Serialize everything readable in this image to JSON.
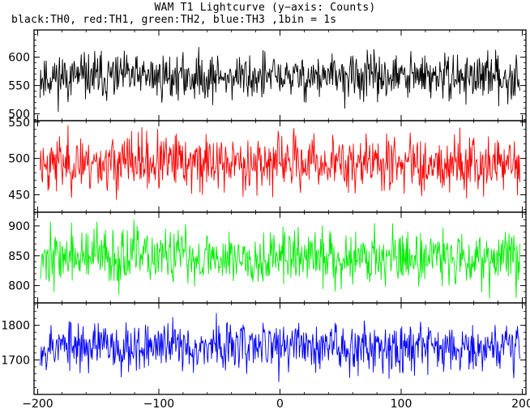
{
  "title": "WAM T1 Lightcurve (y−axis: Counts)",
  "subtitle": "black:TH0, red:TH1, green:TH2, blue:TH3 ,1bin = 1s",
  "chart_data": {
    "type": "line",
    "shared_x": {
      "range": [
        -203,
        203
      ],
      "ticks": [
        -200,
        -100,
        0,
        100,
        200
      ],
      "tick_labels": [
        "−200",
        "−100",
        "0",
        "100",
        "200"
      ]
    },
    "panels": [
      {
        "series": "TH0",
        "color": "#000000",
        "ylim": [
          488,
          648
        ],
        "yticks": [
          500,
          550,
          600
        ],
        "mean": 565,
        "sd": 20,
        "seed": 11
      },
      {
        "series": "TH1",
        "color": "#ff0000",
        "ylim": [
          426,
          552
        ],
        "yticks": [
          450,
          500,
          550
        ],
        "mean": 494,
        "sd": 19,
        "seed": 23
      },
      {
        "series": "TH2",
        "color": "#00ee00",
        "ylim": [
          771,
          923
        ],
        "yticks": [
          800,
          850,
          900
        ],
        "mean": 848,
        "sd": 23,
        "seed": 37
      },
      {
        "series": "TH3",
        "color": "#0000ff",
        "ylim": [
          1600,
          1865
        ],
        "yticks": [
          1700,
          1800
        ],
        "mean": 1740,
        "sd": 35,
        "seed": 53
      }
    ]
  }
}
